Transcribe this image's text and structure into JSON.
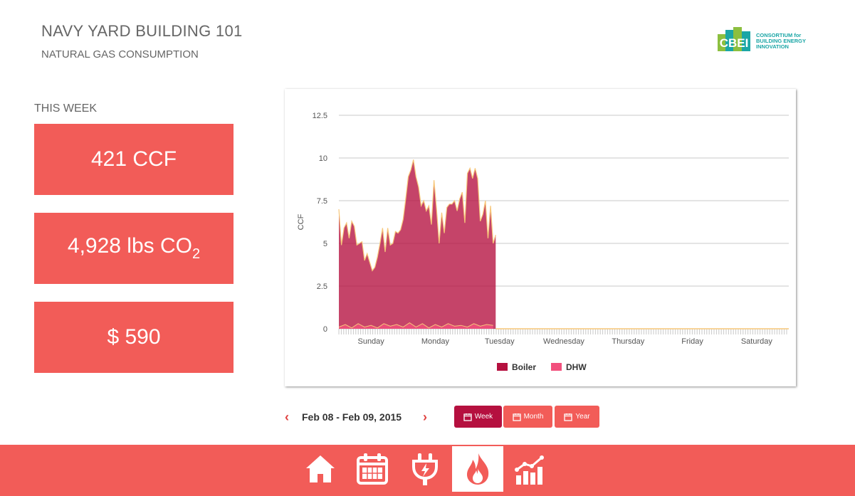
{
  "header": {
    "title": "NAVY YARD BUILDING 101",
    "subtitle": "NATURAL GAS CONSUMPTION"
  },
  "logo": {
    "mark": "CBEI",
    "text": [
      "CONSORTIUM for",
      "BUILDING ENERGY",
      "INNOVATION"
    ]
  },
  "summary": {
    "period_label": "THIS WEEK",
    "ccf": "421 CCF",
    "co2_value": "4,928 lbs CO",
    "co2_sub": "2",
    "cost": "$ 590"
  },
  "navigation": {
    "date_range": "Feb 08 - Feb 09, 2015",
    "ranges": [
      {
        "label": "Week",
        "active": true
      },
      {
        "label": "Month",
        "active": false
      },
      {
        "label": "Year",
        "active": false
      }
    ]
  },
  "footer": {
    "items": [
      {
        "icon": "home-icon",
        "active": false
      },
      {
        "icon": "calendar-icon",
        "active": false
      },
      {
        "icon": "plug-icon",
        "active": false
      },
      {
        "icon": "flame-icon",
        "active": true
      },
      {
        "icon": "bar-chart-icon",
        "active": false
      }
    ]
  },
  "colors": {
    "accent": "#f25c58",
    "boiler": "#b5103f",
    "dhw": "#f2507d",
    "active_button": "#b5103f"
  },
  "chart_data": {
    "type": "area",
    "ylabel": "CCF",
    "ylim": [
      0,
      12.5
    ],
    "yticks": [
      "0",
      "2.5",
      "5",
      "7.5",
      "10",
      "12.5"
    ],
    "xlim": [
      -0.5,
      6.5
    ],
    "x_labels": [
      "Sunday",
      "Monday",
      "Tuesday",
      "Wednesday",
      "Thursday",
      "Friday",
      "Saturday"
    ],
    "grid": true,
    "legend_position": "bottom",
    "series": [
      {
        "name": "Boiler",
        "x": [
          -0.5,
          -0.46,
          -0.42,
          -0.38,
          -0.34,
          -0.3,
          -0.26,
          -0.22,
          -0.18,
          -0.14,
          -0.1,
          -0.06,
          -0.02,
          0.02,
          0.06,
          0.1,
          0.14,
          0.18,
          0.22,
          0.26,
          0.3,
          0.34,
          0.38,
          0.42,
          0.46,
          0.5,
          0.54,
          0.58,
          0.62,
          0.66,
          0.7,
          0.74,
          0.78,
          0.82,
          0.86,
          0.9,
          0.94,
          0.98,
          1.02,
          1.06,
          1.1,
          1.14,
          1.18,
          1.22,
          1.26,
          1.3,
          1.34,
          1.38,
          1.42,
          1.46,
          1.5,
          1.54,
          1.58,
          1.62,
          1.66,
          1.7,
          1.74,
          1.78,
          1.82,
          1.86,
          1.9,
          1.94
        ],
        "values": [
          7.0,
          4.9,
          5.9,
          6.2,
          5.3,
          6.3,
          6.0,
          4.9,
          5.0,
          5.1,
          4.0,
          4.4,
          3.9,
          3.4,
          3.6,
          4.2,
          5.0,
          5.9,
          4.5,
          5.9,
          4.9,
          5.0,
          5.7,
          5.6,
          5.8,
          6.4,
          7.6,
          8.9,
          9.3,
          9.9,
          8.9,
          8.3,
          7.2,
          7.5,
          6.9,
          7.2,
          6.1,
          8.7,
          7.0,
          5.0,
          6.8,
          5.6,
          7.1,
          7.3,
          7.3,
          7.5,
          6.9,
          7.6,
          8.0,
          6.2,
          9.1,
          9.4,
          8.8,
          9.4,
          8.8,
          6.3,
          6.7,
          7.5,
          5.3,
          7.2,
          5.0,
          5.5
        ]
      },
      {
        "name": "DHW",
        "x": [
          -0.5,
          -0.4,
          -0.3,
          -0.2,
          -0.1,
          0.0,
          0.1,
          0.2,
          0.3,
          0.4,
          0.5,
          0.6,
          0.7,
          0.8,
          0.9,
          1.0,
          1.1,
          1.2,
          1.3,
          1.4,
          1.5,
          1.6,
          1.7,
          1.8,
          1.9
        ],
        "values": [
          0.1,
          0.25,
          0.05,
          0.3,
          0.1,
          0.2,
          0.05,
          0.3,
          0.15,
          0.25,
          0.1,
          0.35,
          0.1,
          0.3,
          0.05,
          0.25,
          0.1,
          0.3,
          0.15,
          0.2,
          0.1,
          0.3,
          0.15,
          0.25,
          0.2
        ]
      }
    ]
  }
}
